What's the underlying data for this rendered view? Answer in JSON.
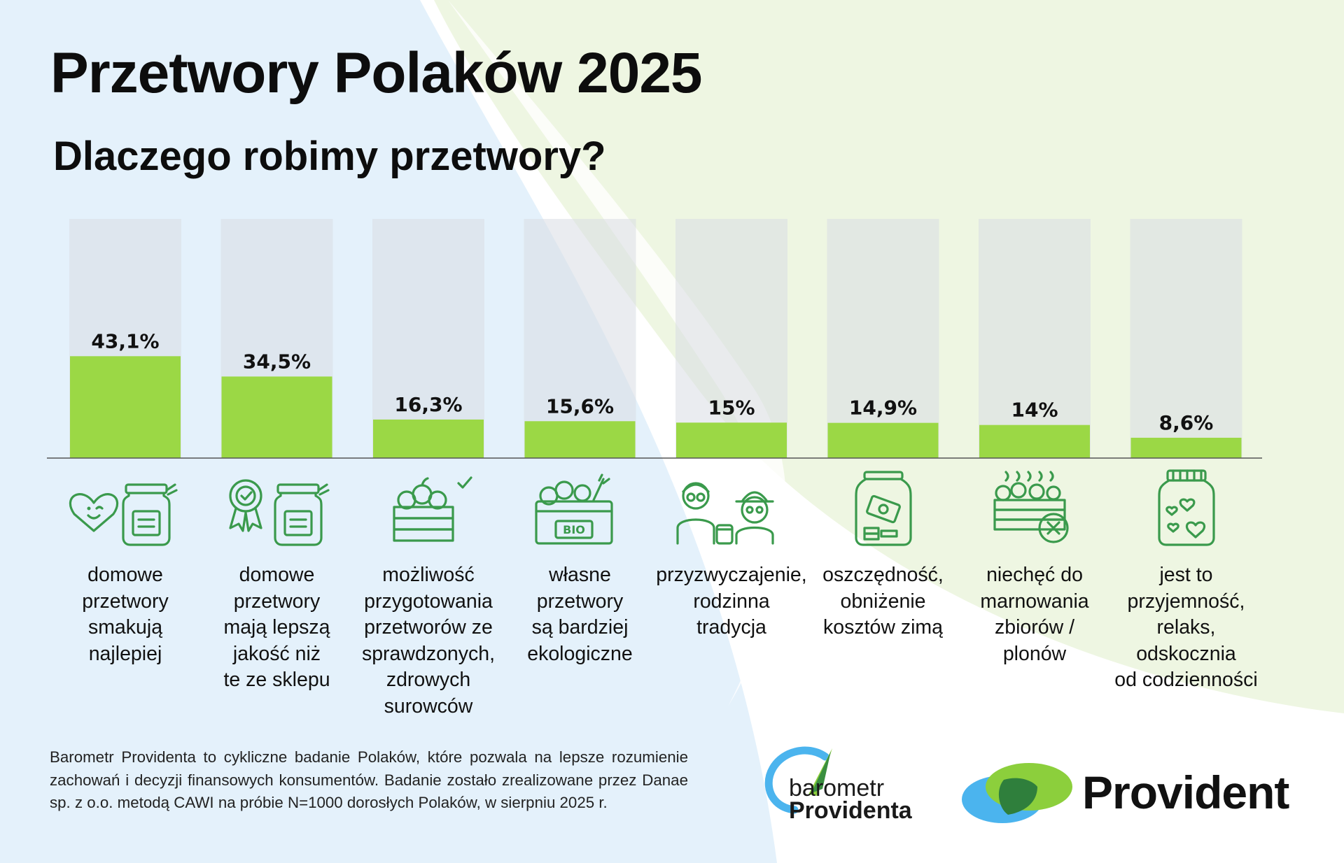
{
  "title": "Przetwory Polaków 2025",
  "subtitle": "Dlaczego robimy przetwory?",
  "colors": {
    "bar_fill": "#9bd845",
    "bar_track": "#d8dde3",
    "icon_stroke": "#3a9a4c"
  },
  "chart_data": {
    "type": "bar",
    "unit": "%",
    "ylim": [
      0,
      100
    ],
    "categories": [
      "domowe\nprzetwory\nsmakują\nnajlepiej",
      "domowe\nprzetwory\nmają lepszą\njakość niż\nte ze sklepu",
      "możliwość\nprzygotowania\nprzetworów ze\nsprawdzonych,\nzdrowych\nsurowców",
      "własne\nprzetwory\nsą bardziej\nekologiczne",
      "przyzwyczajenie,\nrodzinna\ntradycja",
      "oszczędność,\nobniżenie\nkosztów zimą",
      "niechęć do\nmarnowania\nzbiorów /\nplonów",
      "jest to\nprzyjemność,\nrelaks,\nodskocznia\nod codzienności"
    ],
    "values": [
      43.1,
      34.5,
      16.3,
      15.6,
      15,
      14.9,
      14,
      8.6
    ],
    "value_labels": [
      "43,1%",
      "34,5%",
      "16,3%",
      "15,6%",
      "15%",
      "14,9%",
      "14%",
      "8,6%"
    ],
    "icons": [
      "heart-jar-icon",
      "award-jar-icon",
      "fruit-crate-icon",
      "bio-crate-icon",
      "family-tradition-icon",
      "money-jar-icon",
      "crate-no-waste-icon",
      "hearts-jar-icon"
    ]
  },
  "footnote": "Barometr Providenta to cykliczne badanie Polaków, które pozwala na lepsze rozumienie zachowań i decyzji finansowych konsumentów. Badanie zostało zrealizowane przez Danae sp. z o.o. metodą CAWI na próbie N=1000 dorosłych Polaków, w sierpniu 2025 r.",
  "logos": {
    "barometr_line1": "barometr",
    "barometr_line2": "Providenta",
    "provident": "Provident"
  }
}
